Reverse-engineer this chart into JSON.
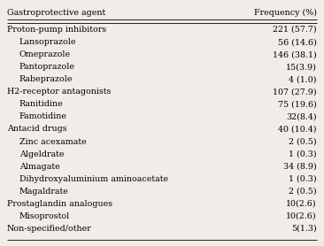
{
  "col_header_left": "Gastroprotective agent",
  "col_header_right": "Frequency (%)",
  "rows": [
    {
      "label": "Proton-pump inhibitors",
      "value": "221 (57.7)",
      "indent": false
    },
    {
      "label": "Lansoprazole",
      "value": "56 (14.6)",
      "indent": true
    },
    {
      "label": "Omeprazole",
      "value": "146 (38.1)",
      "indent": true
    },
    {
      "label": "Pantoprazole",
      "value": "15(3.9)",
      "indent": true
    },
    {
      "label": "Rabeprazole",
      "value": "4 (1.0)",
      "indent": true
    },
    {
      "label": "H2-receptor antagonists",
      "value": "107 (27.9)",
      "indent": false
    },
    {
      "label": "Ranitidine",
      "value": "75 (19.6)",
      "indent": true
    },
    {
      "label": "Famotidine",
      "value": "32(8.4)",
      "indent": true
    },
    {
      "label": "Antacid drugs",
      "value": "40 (10.4)",
      "indent": false
    },
    {
      "label": "Zinc acexamate",
      "value": "2 (0.5)",
      "indent": true
    },
    {
      "label": "Algeldrate",
      "value": "1 (0.3)",
      "indent": true
    },
    {
      "label": "Almagate",
      "value": "34 (8.9)",
      "indent": true
    },
    {
      "label": "Dihydroxyaluminium aminoacetate",
      "value": "1 (0.3)",
      "indent": true
    },
    {
      "label": "Magaldrate",
      "value": "2 (0.5)",
      "indent": true
    },
    {
      "label": "Prostaglandin analogues",
      "value": "10(2.6)",
      "indent": false
    },
    {
      "label": "Misoprostol",
      "value": "10(2.6)",
      "indent": true
    },
    {
      "label": "Non-specified/other",
      "value": "5(1.3)",
      "indent": false
    }
  ],
  "background_color": "#f0ede8",
  "font_size": 6.8,
  "header_font_size": 6.8,
  "line_color": "#222222"
}
